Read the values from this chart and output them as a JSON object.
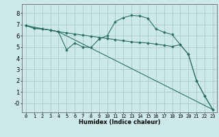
{
  "background_color": "#cce8e8",
  "grid_color": "#aacaca",
  "line_color": "#2a7060",
  "xlabel": "Humidex (Indice chaleur)",
  "xlim": [
    -0.5,
    23.5
  ],
  "ylim": [
    -0.8,
    8.8
  ],
  "xticks": [
    0,
    1,
    2,
    3,
    4,
    5,
    6,
    7,
    8,
    9,
    10,
    11,
    12,
    13,
    14,
    15,
    16,
    17,
    18,
    19,
    20,
    21,
    22,
    23
  ],
  "yticks": [
    0,
    1,
    2,
    3,
    4,
    5,
    6,
    7,
    8
  ],
  "ytick_labels": [
    "-0",
    "1",
    "2",
    "3",
    "4",
    "5",
    "6",
    "7",
    "8"
  ],
  "line1_x": [
    0,
    1,
    2,
    3,
    4,
    5,
    6,
    7,
    8,
    9,
    10,
    11,
    12,
    13,
    14,
    15,
    16,
    17,
    18,
    19,
    20,
    21,
    22,
    23
  ],
  "line1_y": [
    6.9,
    6.65,
    6.6,
    6.5,
    6.35,
    4.75,
    5.35,
    5.0,
    4.95,
    5.7,
    6.0,
    7.25,
    7.6,
    7.8,
    7.75,
    7.55,
    6.6,
    6.3,
    6.1,
    5.2,
    4.35,
    2.0,
    0.65,
    -0.55
  ],
  "line2_x": [
    0,
    1,
    2,
    3,
    4,
    5,
    6,
    7,
    8,
    9,
    10,
    11,
    12,
    13,
    14,
    15,
    16,
    17,
    18,
    19,
    20,
    21,
    22,
    23
  ],
  "line2_y": [
    6.9,
    6.65,
    6.6,
    6.5,
    6.35,
    6.25,
    6.15,
    6.05,
    5.95,
    5.85,
    5.75,
    5.65,
    5.55,
    5.45,
    5.4,
    5.35,
    5.25,
    5.15,
    5.05,
    5.2,
    4.35,
    2.0,
    0.65,
    -0.55
  ],
  "line3_x": [
    0,
    4,
    23
  ],
  "line3_y": [
    6.9,
    6.35,
    -0.55
  ],
  "xlabel_fontsize": 6,
  "xtick_fontsize": 5,
  "ytick_fontsize": 6
}
